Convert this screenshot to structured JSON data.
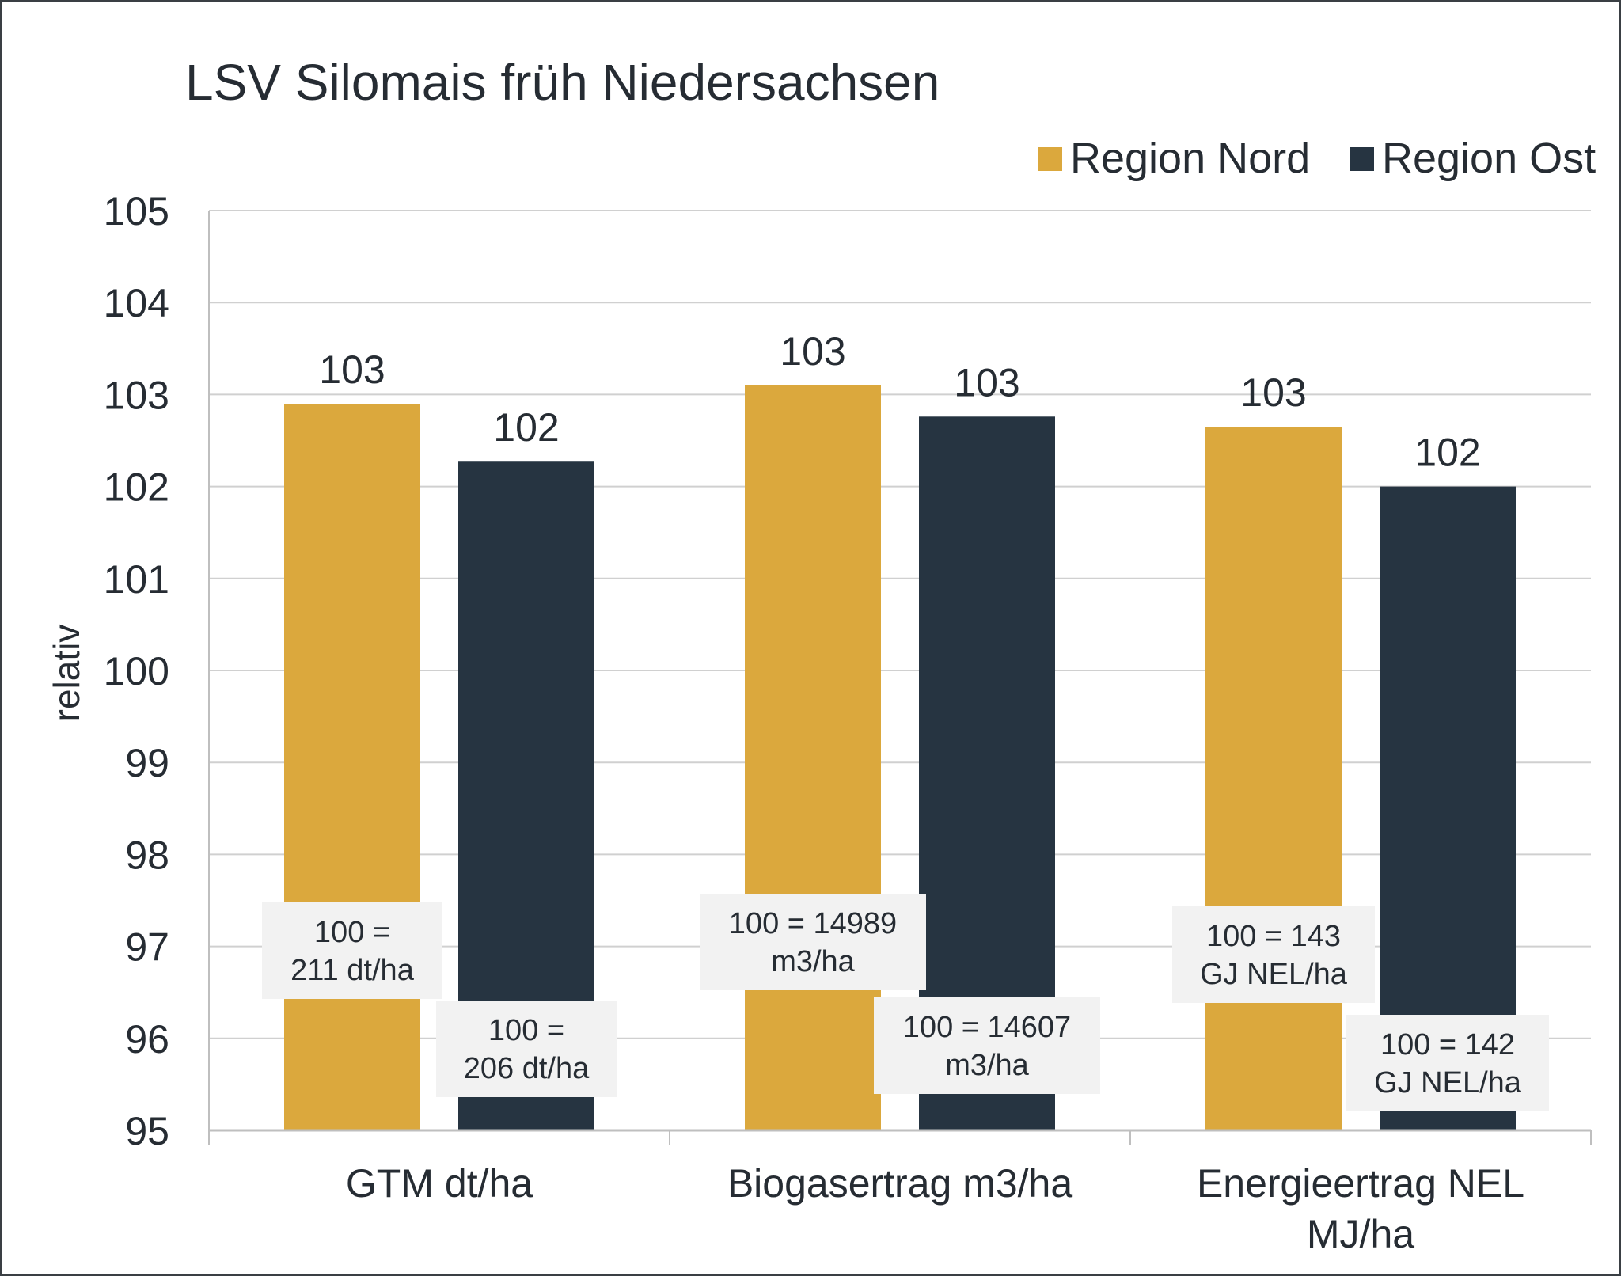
{
  "chart_data": {
    "type": "bar",
    "title": "LSV Silomais früh Niedersachsen",
    "xlabel": "",
    "ylabel": "relativ",
    "ylim": [
      95,
      105
    ],
    "yticks": [
      95,
      96,
      97,
      98,
      99,
      100,
      101,
      102,
      103,
      104,
      105
    ],
    "ytick_labels": [
      "95",
      "96",
      "97",
      "98",
      "99",
      "100",
      "101",
      "102",
      "103",
      "104",
      "105"
    ],
    "grid": true,
    "legend_position": "top-right",
    "categories": [
      [
        "GTM dt/ha"
      ],
      [
        "Biogasertrag m3/ha"
      ],
      [
        "Energieertrag NEL",
        "MJ/ha"
      ]
    ],
    "series": [
      {
        "name": "Region Nord",
        "color": "#dba83d",
        "values": [
          102.9,
          103.1,
          102.65
        ],
        "data_labels": [
          "103",
          "103",
          "103"
        ],
        "annotations": [
          [
            "100 =",
            "211 dt/ha"
          ],
          [
            "100 = 14989",
            "m3/ha"
          ],
          [
            "100 = 143",
            "GJ NEL/ha"
          ]
        ]
      },
      {
        "name": "Region Ost",
        "color": "#263441",
        "values": [
          102.27,
          102.76,
          102.0
        ],
        "data_labels": [
          "102",
          "103",
          "102"
        ],
        "annotations": [
          [
            "100 =",
            "206 dt/ha"
          ],
          [
            "100 = 14607",
            "m3/ha"
          ],
          [
            "100 = 142",
            "GJ NEL/ha"
          ]
        ]
      }
    ]
  },
  "colors": {
    "grid": "#d0d0d0",
    "axis": "#bfbfbf",
    "annotation_box": "#f2f2f2",
    "text": "#262c33"
  }
}
